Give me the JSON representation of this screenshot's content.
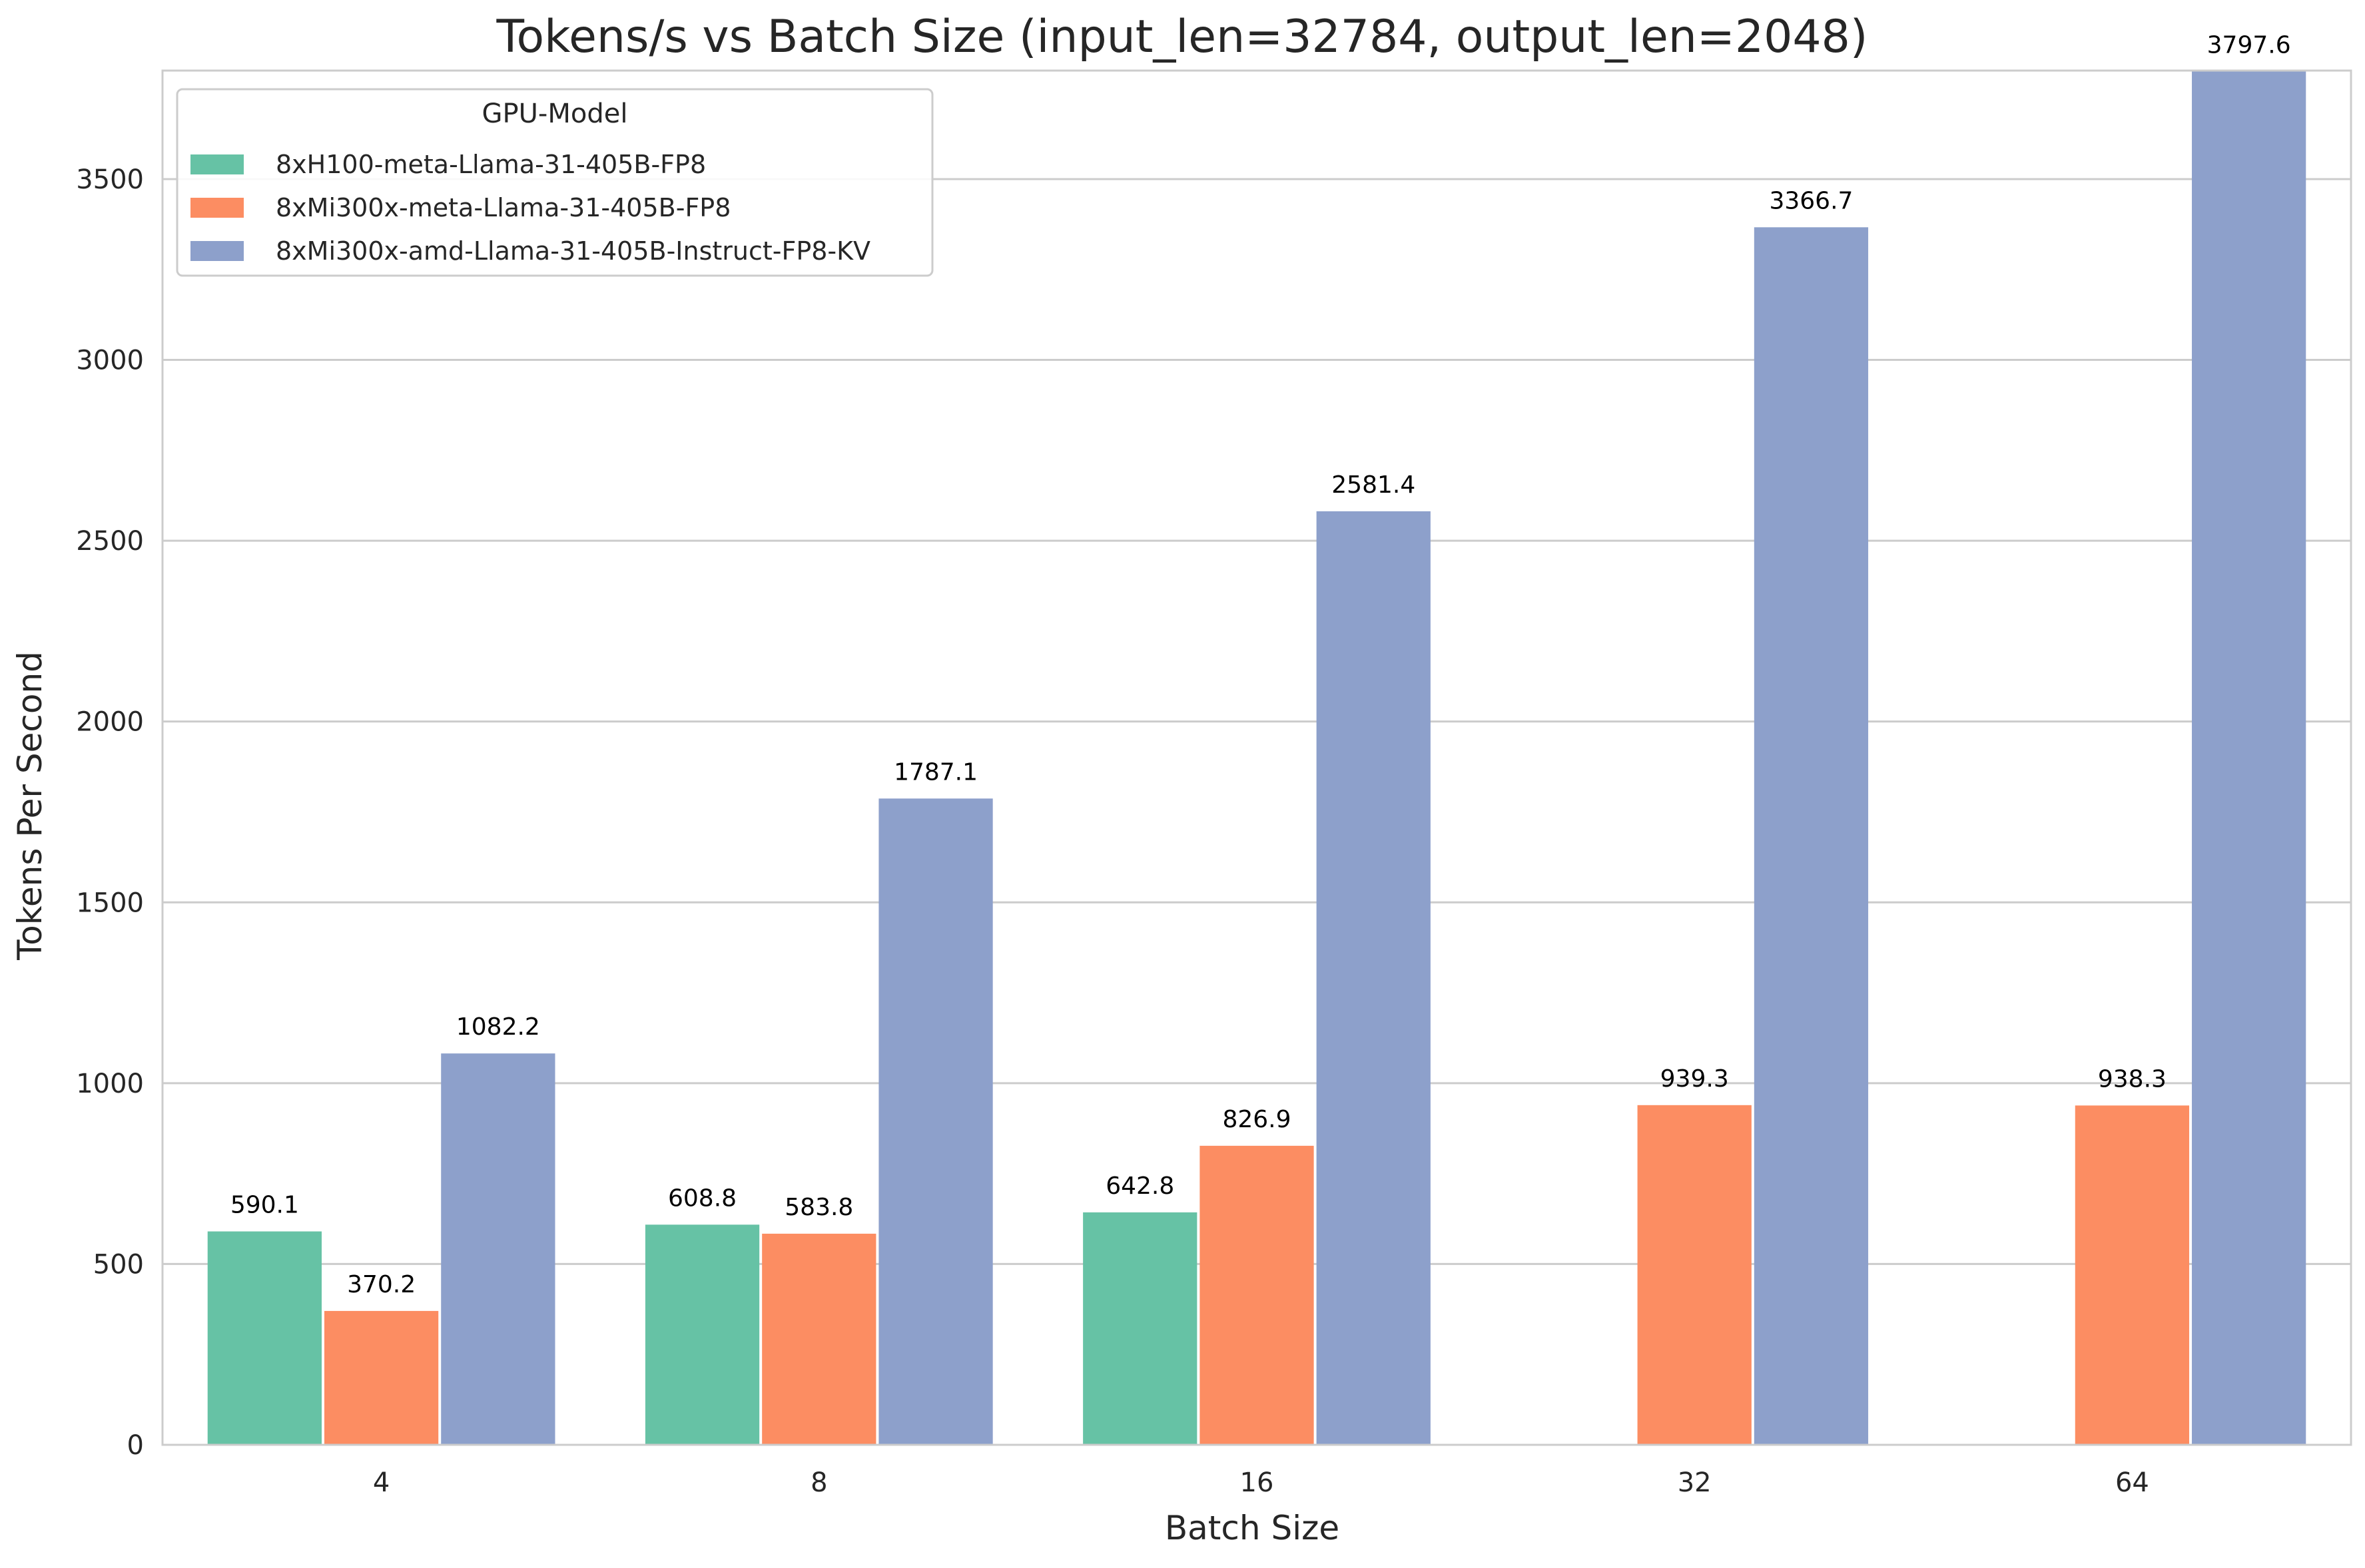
{
  "chart_data": {
    "type": "bar",
    "title": "Tokens/s vs Batch Size (input_len=32784, output_len=2048)",
    "xlabel": "Batch Size",
    "ylabel": "Tokens Per Second",
    "categories": [
      "4",
      "8",
      "16",
      "32",
      "64"
    ],
    "ylim": [
      0,
      3800
    ],
    "yticks": [
      0,
      500,
      1000,
      1500,
      2000,
      2500,
      3000,
      3500
    ],
    "grid": "horizontal",
    "legend": {
      "title": "GPU-Model",
      "position": "top-left"
    },
    "series": [
      {
        "name": "8xH100-meta-Llama-31-405B-FP8",
        "color": "#66c2a5",
        "values": [
          590.1,
          608.8,
          642.8,
          null,
          null
        ],
        "labels": [
          "590.1",
          "608.8",
          "642.8",
          "",
          ""
        ]
      },
      {
        "name": "8xMi300x-meta-Llama-31-405B-FP8",
        "color": "#fc8d62",
        "values": [
          370.2,
          583.8,
          826.9,
          939.3,
          938.3
        ],
        "labels": [
          "370.2",
          "583.8",
          "826.9",
          "939.3",
          "938.3"
        ]
      },
      {
        "name": "8xMi300x-amd-Llama-31-405B-Instruct-FP8-KV",
        "color": "#8da0cb",
        "values": [
          1082.2,
          1787.1,
          2581.4,
          3366.7,
          3797.6
        ],
        "labels": [
          "1082.2",
          "1787.1",
          "2581.4",
          "3366.7",
          "3797.6"
        ]
      }
    ]
  }
}
